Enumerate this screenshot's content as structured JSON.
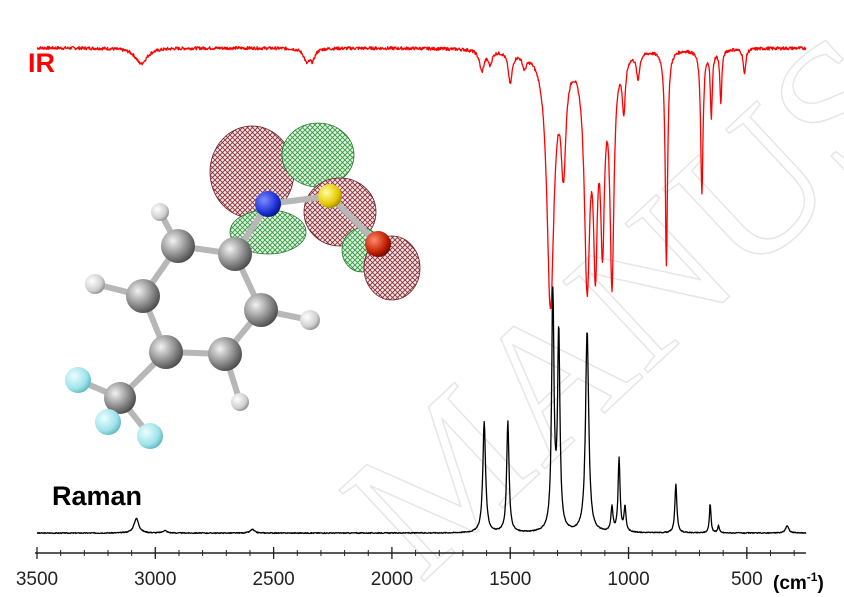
{
  "colors": {
    "ir": "#ff0000",
    "raman": "#000000",
    "axis": "#222222"
  },
  "chart_data": {
    "type": "line",
    "xlabel": "(cm-1)",
    "xlabel_base": "(cm",
    "xlabel_sup": "-1",
    "xlabel_close": ")",
    "xlim": [
      3500,
      250
    ],
    "x_reversed": true,
    "xticks": [
      3500,
      3000,
      2500,
      2000,
      1500,
      1000,
      500
    ],
    "xtick_labels": [
      "3500",
      "3000",
      "2500",
      "2000",
      "1500",
      "1000",
      "500"
    ],
    "series": [
      {
        "name": "IR",
        "baseline": 0.97,
        "bands": [
          [
            3060,
            0.06,
            30
          ],
          [
            2360,
            0.05,
            15
          ],
          [
            2335,
            0.04,
            12
          ],
          [
            1620,
            0.08,
            12
          ],
          [
            1585,
            0.05,
            10
          ],
          [
            1500,
            0.12,
            10
          ],
          [
            1440,
            0.05,
            10
          ],
          [
            1330,
            0.97,
            18
          ],
          [
            1275,
            0.4,
            12
          ],
          [
            1175,
            0.85,
            14
          ],
          [
            1140,
            0.7,
            10
          ],
          [
            1110,
            0.65,
            10
          ],
          [
            1070,
            0.85,
            10
          ],
          [
            1020,
            0.2,
            8
          ],
          [
            960,
            0.1,
            8
          ],
          [
            840,
            0.82,
            6
          ],
          [
            690,
            0.55,
            6
          ],
          [
            650,
            0.25,
            5
          ],
          [
            610,
            0.2,
            5
          ],
          [
            510,
            0.1,
            6
          ]
        ]
      },
      {
        "name": "Raman",
        "baseline": 0.02,
        "bands": [
          [
            3080,
            0.06,
            12
          ],
          [
            2960,
            0.01,
            10
          ],
          [
            2590,
            0.015,
            10
          ],
          [
            1610,
            0.45,
            7
          ],
          [
            1510,
            0.45,
            6
          ],
          [
            1320,
            0.97,
            6
          ],
          [
            1295,
            0.8,
            6
          ],
          [
            1175,
            0.82,
            8
          ],
          [
            1070,
            0.1,
            5
          ],
          [
            1040,
            0.3,
            5
          ],
          [
            1015,
            0.1,
            5
          ],
          [
            800,
            0.2,
            5
          ],
          [
            655,
            0.12,
            4
          ],
          [
            620,
            0.03,
            4
          ],
          [
            330,
            0.03,
            8
          ]
        ]
      }
    ],
    "labels": {
      "ir": "IR",
      "raman": "Raman"
    },
    "grid": false,
    "inset": "molecule-with-orbital"
  },
  "watermark": "MANUSCRIPT"
}
